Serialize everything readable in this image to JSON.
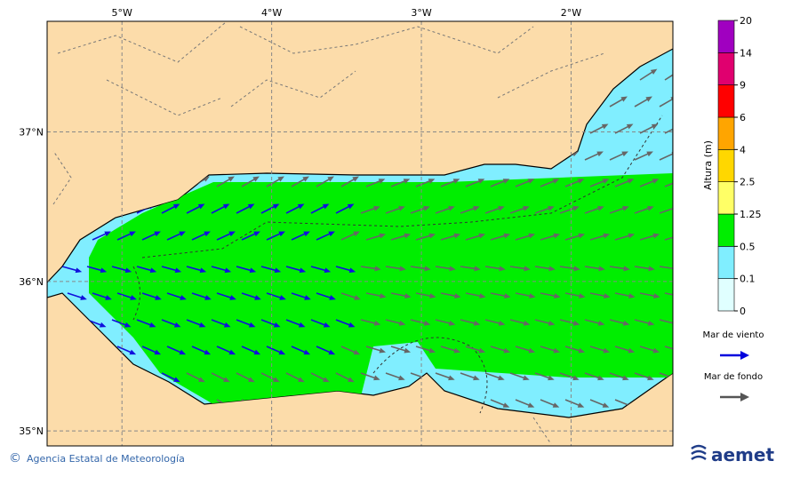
{
  "map": {
    "xlim": [
      -5.5,
      -1.32
    ],
    "ylim": [
      34.9,
      37.74
    ],
    "lon_ticks": [
      {
        "value": -5,
        "label": "5°W"
      },
      {
        "value": -4,
        "label": "4°W"
      },
      {
        "value": -3,
        "label": "3°W"
      },
      {
        "value": -2,
        "label": "2°W"
      }
    ],
    "lat_ticks": [
      {
        "value": 37,
        "label": "37°N"
      },
      {
        "value": 36,
        "label": "36°N"
      },
      {
        "value": 35,
        "label": "35°N"
      }
    ],
    "colorbar": {
      "title": "Altura (m)",
      "levels": [
        0,
        0.1,
        0.5,
        1.25,
        2.5,
        4,
        6,
        9,
        14,
        20
      ],
      "colors": [
        "#e0ffff",
        "#80eeff",
        "#00ee00",
        "#ffff66",
        "#ffd700",
        "#ffa500",
        "#ff0000",
        "#e0006f",
        "#a000c0"
      ]
    },
    "legend": [
      {
        "name": "Mar de viento",
        "color": "#0000dd"
      },
      {
        "name": "Mar de fondo",
        "color": "#555555"
      }
    ],
    "credit": {
      "symbol": "©",
      "text": "Agencia Estatal de Meteorología"
    },
    "logo": "aemet"
  }
}
